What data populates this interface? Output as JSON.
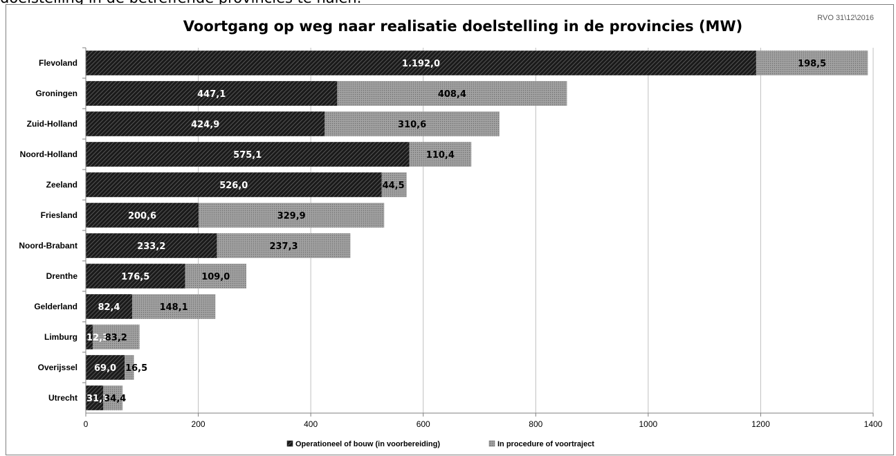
{
  "header_fragment": "doelstelling in de betreffende provincies te halen.",
  "chart_data": {
    "type": "bar",
    "orientation": "horizontal",
    "stacked": true,
    "title": "Voortgang op weg naar realisatie doelstelling in de provincies (MW)",
    "source_note": "RVO 31\\12\\2016",
    "categories": [
      "Flevoland",
      "Groningen",
      "Zuid-Holland",
      "Noord-Holland",
      "Zeeland",
      "Friesland",
      "Noord-Brabant",
      "Drenthe",
      "Gelderland",
      "Limburg",
      "Overijssel",
      "Utrecht"
    ],
    "series": [
      {
        "name": "Operationeel of bouw (in voorbereiding)",
        "values": [
          1192.0,
          447.1,
          424.9,
          575.1,
          526.0,
          200.6,
          233.2,
          176.5,
          82.4,
          12.3,
          69.0,
          31.1
        ],
        "labels": [
          "1.192,0",
          "447,1",
          "424,9",
          "575,1",
          "526,0",
          "200,6",
          "233,2",
          "176,5",
          "82,4",
          "12,3",
          "69,0",
          "31,1"
        ],
        "color": "#1a1a1a",
        "label_color": "#ffffff"
      },
      {
        "name": "In procedure of voortraject",
        "values": [
          198.5,
          408.4,
          310.6,
          110.4,
          44.5,
          329.9,
          237.3,
          109.0,
          148.1,
          83.2,
          16.5,
          34.4
        ],
        "labels": [
          "198,5",
          "408,4",
          "310,6",
          "110,4",
          "44,5",
          "329,9",
          "237,3",
          "109,0",
          "148,1",
          "83,2",
          "16,5",
          "34,4"
        ],
        "color": "#8c8c8c",
        "label_color": "#000000"
      }
    ],
    "xlim": [
      0,
      1400
    ],
    "xticks": [
      0,
      200,
      400,
      600,
      800,
      1000,
      1200,
      1400
    ],
    "xtick_labels": [
      "0",
      "200",
      "400",
      "600",
      "800",
      "1000",
      "1200",
      "1400"
    ],
    "grid": "vertical",
    "legend": "bottom-center"
  }
}
